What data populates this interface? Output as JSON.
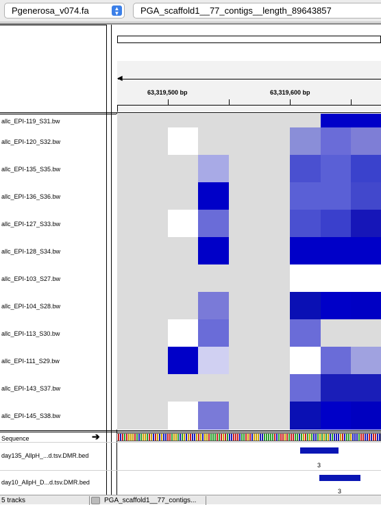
{
  "genome_select": {
    "value": "Pgenerosa_v074.fa"
  },
  "locus_select": {
    "value": "PGA_scaffold1__77_contigs__length_89643857"
  },
  "ruler": {
    "ticks": [
      {
        "label": "63,319,500 bp"
      },
      {
        "label": "63,319,600 bp"
      }
    ]
  },
  "tracks": [
    {
      "name": "allc_EPI-119_S31.bw"
    },
    {
      "name": "allc_EPI-120_S32.bw"
    },
    {
      "name": "allc_EPI-135_S35.bw"
    },
    {
      "name": "allc_EPI-136_S36.bw"
    },
    {
      "name": "allc_EPI-127_S33.bw"
    },
    {
      "name": "allc_EPI-128_S34.bw"
    },
    {
      "name": "allc_EPI-103_S27.bw"
    },
    {
      "name": "allc_EPI-104_S28.bw"
    },
    {
      "name": "allc_EPI-113_S30.bw"
    },
    {
      "name": "allc_EPI-111_S29.bw"
    },
    {
      "name": "allc_EPI-143_S37.bw"
    },
    {
      "name": "allc_EPI-145_S38.bw"
    }
  ],
  "sequence_track": {
    "label": "Sequence",
    "arrow": "➔"
  },
  "bed_tracks": [
    {
      "name": "day135_AllpH_...d.tsv.DMR.bed",
      "feature_label": "3"
    },
    {
      "name": "day10_AllpH_D...d.tsv.DMR.bed",
      "feature_label": "3"
    }
  ],
  "status": {
    "tracks": "5 tracks",
    "locus": "PGA_scaffold1__77_contigs..."
  },
  "colors": {
    "gray": "#dcdcdc",
    "white": "#ffffff",
    "c10": "#0a10b4",
    "c20": "#1a1eb8",
    "c00": "#0000c8",
    "c30": "#3a40cc",
    "c40": "#4a50d0",
    "c50": "#5a60d6",
    "c60": "#6a6cd8",
    "c70": "#7a7ad8",
    "c80": "#8a8ed8",
    "c90": "#a8aae6",
    "c95": "#d0d0f2"
  },
  "heatmap": {
    "columns": 6,
    "rows": [
      [
        "gray",
        "gray",
        "gray",
        "gray",
        "gray",
        "c00"
      ],
      [
        "gray",
        "white",
        "gray",
        "gray",
        "c80",
        "c60"
      ],
      [
        "gray",
        "gray",
        "c90",
        "gray",
        "c40",
        "c50"
      ],
      [
        "gray",
        "gray",
        "c00",
        "gray",
        "c50",
        "c50"
      ],
      [
        "gray",
        "white",
        "c60",
        "gray",
        "c40",
        "c30"
      ],
      [
        "gray",
        "gray",
        "c00",
        "gray",
        "c00",
        "c00"
      ],
      [
        "gray",
        "gray",
        "gray",
        "gray",
        "white",
        "white"
      ],
      [
        "gray",
        "gray",
        "c70",
        "gray",
        "c10",
        "c00"
      ],
      [
        "gray",
        "white",
        "c60",
        "gray",
        "c60",
        "gray"
      ],
      [
        "gray",
        "c00",
        "c95",
        "gray",
        "white",
        "c60"
      ],
      [
        "gray",
        "gray",
        "gray",
        "gray",
        "c60",
        "c20"
      ],
      [
        "gray",
        "white",
        "c70",
        "gray",
        "c10",
        "c00"
      ]
    ]
  }
}
